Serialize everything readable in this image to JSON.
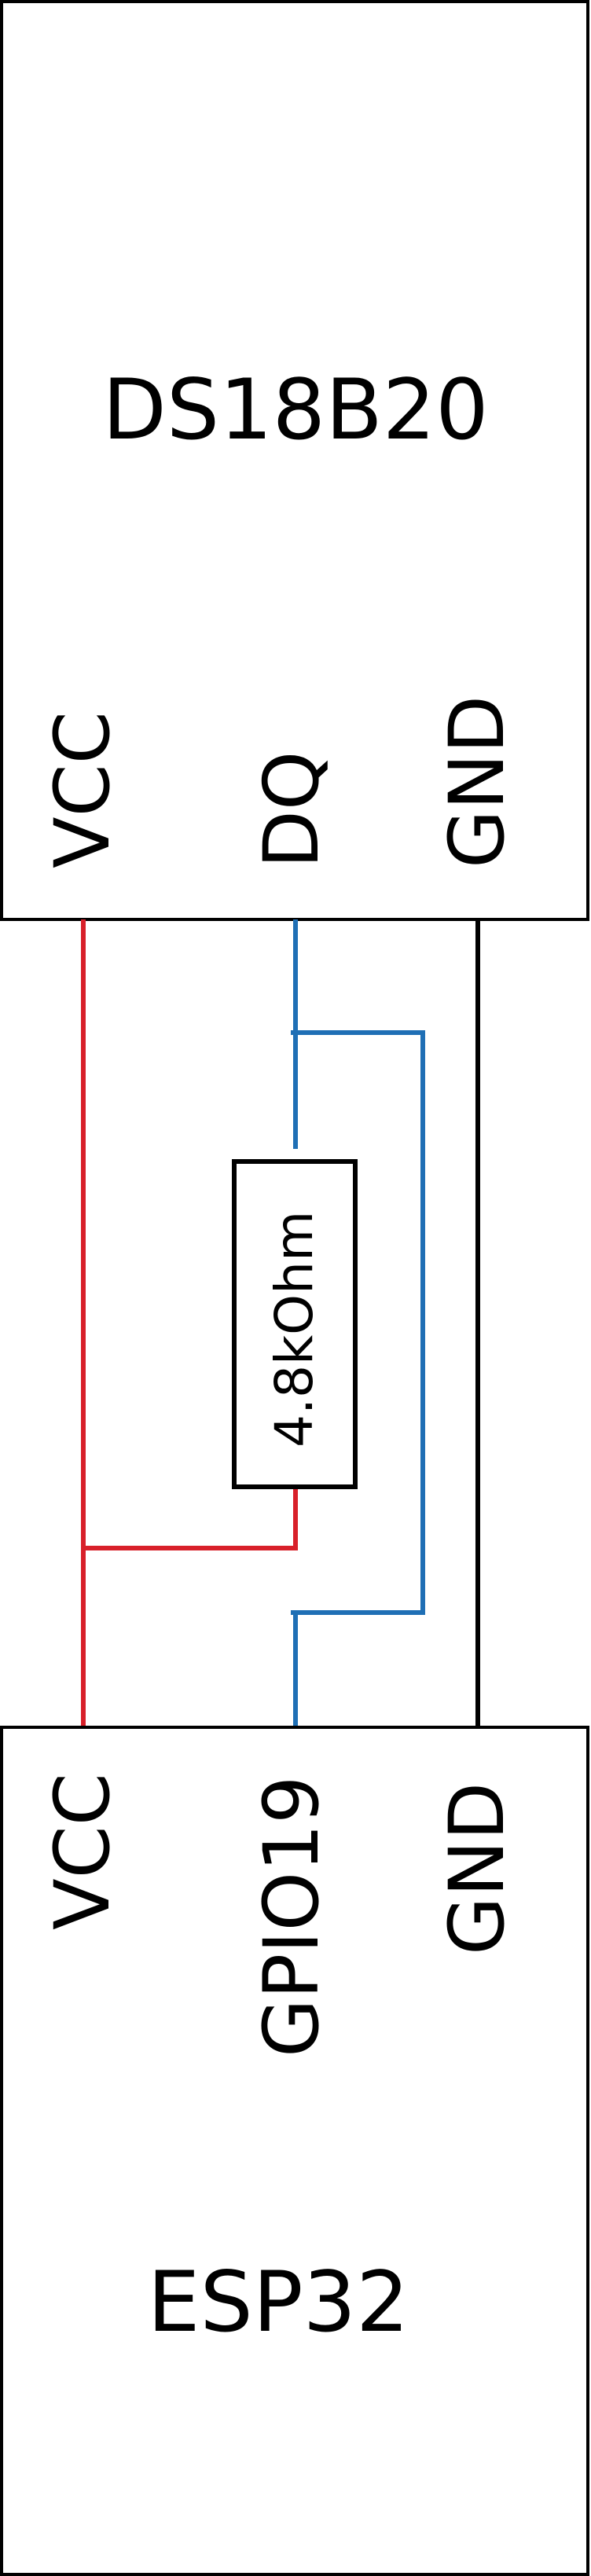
{
  "top_chip": {
    "label": "DS18B20",
    "pins": [
      "VCC",
      "DQ",
      "GND"
    ]
  },
  "bottom_chip": {
    "label": "ESP32",
    "pins": [
      "VCC",
      "GPIO19",
      "GND"
    ]
  },
  "resistor": {
    "label": "4.8kOhm"
  },
  "colors": {
    "vcc_wire": "#d8202a",
    "data_wire": "#1f6fb5",
    "gnd_wire": "#000000"
  }
}
